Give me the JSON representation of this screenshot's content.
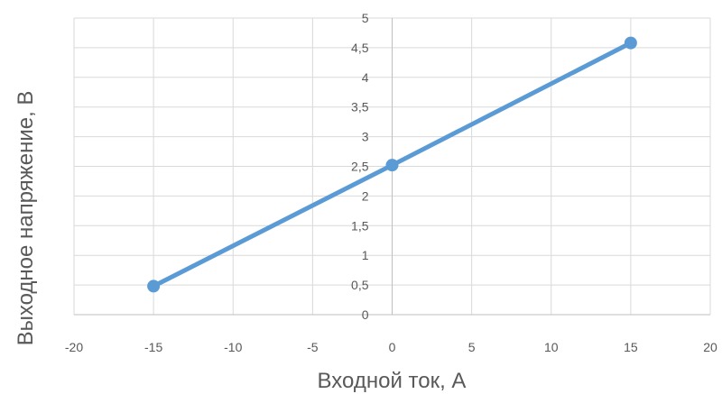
{
  "chart_data": {
    "type": "scatter",
    "title": "",
    "xlabel": "Входной ток, А",
    "ylabel": "Выходное напряжение, В",
    "xlim": [
      -20,
      20
    ],
    "ylim": [
      0,
      5
    ],
    "x_ticks": [
      -20,
      -15,
      -10,
      -5,
      0,
      5,
      10,
      15,
      20
    ],
    "x_tick_labels": [
      "-20",
      "-15",
      "-10",
      "-5",
      "0",
      "5",
      "10",
      "15",
      "20"
    ],
    "y_ticks": [
      0,
      0.5,
      1,
      1.5,
      2,
      2.5,
      3,
      3.5,
      4,
      4.5,
      5
    ],
    "y_tick_labels": [
      "0",
      "0,5",
      "1",
      "1,5",
      "2",
      "2,5",
      "3",
      "3,5",
      "4",
      "4,5",
      "5"
    ],
    "grid": true,
    "legend": "none",
    "series": [
      {
        "x": [
          -15,
          0,
          15
        ],
        "y": [
          0.48,
          2.52,
          4.58
        ],
        "color": "#5B9BD5",
        "markers": true,
        "connected": true
      }
    ]
  }
}
